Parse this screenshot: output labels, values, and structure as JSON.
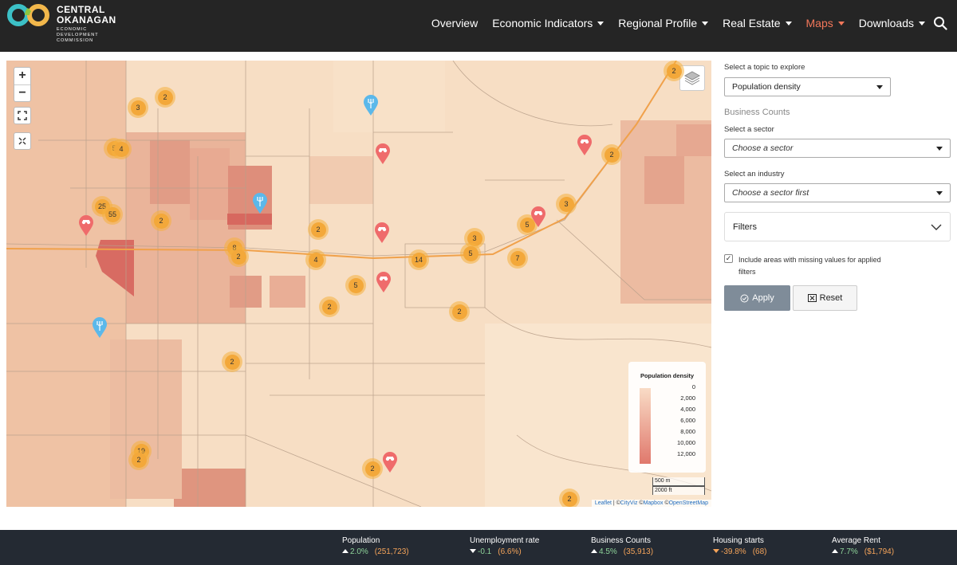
{
  "brand": {
    "line1": "CENTRAL",
    "line2": "OKANAGAN",
    "sub1": "ECONOMIC",
    "sub2": "DEVELOPMENT",
    "sub3": "COMMISSION"
  },
  "nav": [
    {
      "label": "Overview",
      "dropdown": false,
      "active": false
    },
    {
      "label": "Economic Indicators",
      "dropdown": true,
      "active": false
    },
    {
      "label": "Regional Profile",
      "dropdown": true,
      "active": false
    },
    {
      "label": "Real Estate",
      "dropdown": true,
      "active": false
    },
    {
      "label": "Maps",
      "dropdown": true,
      "active": true
    },
    {
      "label": "Downloads",
      "dropdown": true,
      "active": false
    }
  ],
  "colors": {
    "header_bg": "#252525",
    "accent": "#f2775a",
    "footer_bg": "#242a33",
    "cluster": "#f3a83a",
    "pin_red": "#ef6b6b",
    "pin_blue": "#5bb8ea"
  },
  "map": {
    "zoom_in": "+",
    "zoom_out": "−",
    "clusters": [
      "3",
      "2",
      "5",
      "4",
      "25",
      "55",
      "2",
      "8",
      "2",
      "2",
      "4",
      "5",
      "2",
      "14",
      "3",
      "5",
      "7",
      "2",
      "5",
      "3",
      "2",
      "2",
      "19",
      "2",
      "2",
      "2",
      "2"
    ],
    "legend": {
      "title": "Population density",
      "ticks": [
        "0",
        "2,000",
        "4,000",
        "6,000",
        "8,000",
        "10,000",
        "12,000"
      ]
    },
    "scale": {
      "metric": "500 m",
      "imperial": "2000 ft"
    },
    "attribution": {
      "leaflet": "Leaflet",
      "sep1": " | ©",
      "cityviz": "CityViz",
      "sep2": " ©",
      "mapbox": "Mapbox",
      "sep3": " ©",
      "osm": "OpenStreetMap"
    }
  },
  "panel": {
    "topic_label": "Select a topic to explore",
    "topic_value": "Population density",
    "business_counts": "Business Counts",
    "sector_label": "Select a sector",
    "sector_placeholder": "Choose a sector",
    "industry_label": "Select an industry",
    "industry_placeholder": "Choose a sector first",
    "filters": "Filters",
    "checkbox_label": "Include areas with missing values for applied filters",
    "checkbox_checked": true,
    "apply": "Apply",
    "reset": "Reset"
  },
  "footer": [
    {
      "title": "Population",
      "change": "2.0%",
      "value": "(251,723)",
      "direction": "up"
    },
    {
      "title": "Unemployment rate",
      "change": "-0.1",
      "value": "(6.6%)",
      "direction": "down"
    },
    {
      "title": "Business Counts",
      "change": "4.5%",
      "value": "(35,913)",
      "direction": "up"
    },
    {
      "title": "Housing starts",
      "change": "-39.8%",
      "value": "(68)",
      "direction": "down"
    },
    {
      "title": "Average Rent",
      "change": "7.7%",
      "value": "($1,794)",
      "direction": "up"
    }
  ]
}
